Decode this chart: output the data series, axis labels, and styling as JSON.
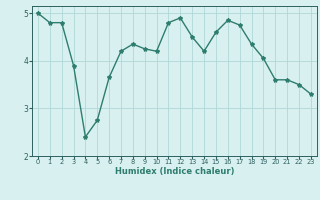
{
  "x": [
    0,
    1,
    2,
    3,
    4,
    5,
    6,
    7,
    8,
    9,
    10,
    11,
    12,
    13,
    14,
    15,
    16,
    17,
    18,
    19,
    20,
    21,
    22,
    23
  ],
  "y": [
    5.0,
    4.8,
    4.8,
    3.9,
    2.4,
    2.75,
    3.65,
    4.2,
    4.35,
    4.25,
    4.2,
    4.8,
    4.9,
    4.5,
    4.2,
    4.6,
    4.85,
    4.75,
    4.35,
    4.05,
    3.6,
    3.6,
    3.5,
    3.3
  ],
  "line_color": "#2e7d6e",
  "marker": "*",
  "marker_size": 3,
  "bg_color": "#d9f0f0",
  "grid_color": "#b0d8d8",
  "xlabel": "Humidex (Indice chaleur)",
  "ylim": [
    2.0,
    5.15
  ],
  "xlim": [
    -0.5,
    23.5
  ],
  "yticks": [
    2,
    3,
    4,
    5
  ],
  "xticks": [
    0,
    1,
    2,
    3,
    4,
    5,
    6,
    7,
    8,
    9,
    10,
    11,
    12,
    13,
    14,
    15,
    16,
    17,
    18,
    19,
    20,
    21,
    22,
    23
  ],
  "font_color": "#2e7d6e",
  "tick_color": "#2e6060",
  "linewidth": 1.0,
  "xlabel_fontsize": 6.0,
  "xtick_fontsize": 4.8,
  "ytick_fontsize": 5.5
}
